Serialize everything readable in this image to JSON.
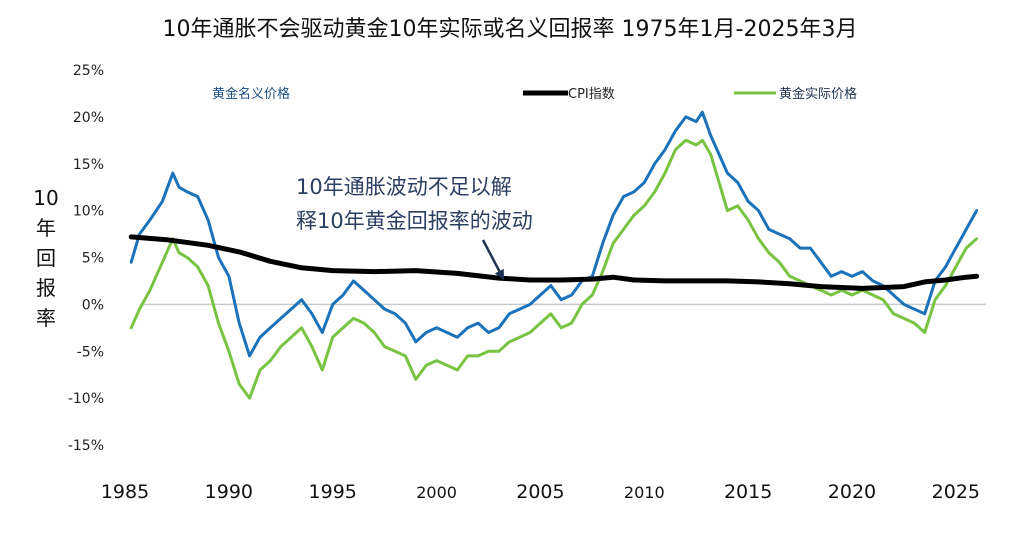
{
  "chart_data": {
    "type": "line",
    "title": "10年通胀不会驱动黄金10年实际或名义回报率 1975年1月-2025年3月",
    "ylabel_chars": [
      "10",
      "年",
      "回",
      "报",
      "率"
    ],
    "ylim": [
      -15,
      25
    ],
    "xlim": [
      1985,
      2026.5
    ],
    "yticks": [
      {
        "value": 25,
        "label": "25%"
      },
      {
        "value": 20,
        "label": "20%"
      },
      {
        "value": 15,
        "label": "15%"
      },
      {
        "value": 10,
        "label": "10%"
      },
      {
        "value": 5,
        "label": "5%"
      },
      {
        "value": 0,
        "label": "0%"
      },
      {
        "value": -5,
        "label": "-5%"
      },
      {
        "value": -10,
        "label": "-10%"
      },
      {
        "value": -15,
        "label": "-15%"
      }
    ],
    "xticks": [
      {
        "value": 1985,
        "label": "1985"
      },
      {
        "value": 1990,
        "label": "1990"
      },
      {
        "value": 1995,
        "label": "1995"
      },
      {
        "value": 2000,
        "label": "2000"
      },
      {
        "value": 2005,
        "label": "2005"
      },
      {
        "value": 2010,
        "label": "2010"
      },
      {
        "value": 2015,
        "label": "2015"
      },
      {
        "value": 2020,
        "label": "2020"
      },
      {
        "value": 2025,
        "label": "2025"
      }
    ],
    "annotation": {
      "lines": [
        "10年通胀波动不足以解",
        "释10年黄金回报率的波动"
      ],
      "arrow_target": {
        "x": 2003.2,
        "y": 2.8
      }
    },
    "series": [
      {
        "name": "黄金名义价格",
        "color": "#1a72bb",
        "x": [
          1985.3,
          1985.7,
          1986.2,
          1986.8,
          1987.3,
          1987.6,
          1988.0,
          1988.5,
          1989.0,
          1989.5,
          1990.0,
          1990.5,
          1991.0,
          1991.5,
          1992.0,
          1992.5,
          1993.0,
          1993.5,
          1994.0,
          1994.5,
          1995.0,
          1995.5,
          1996.0,
          1996.5,
          1997.0,
          1997.5,
          1998.0,
          1998.5,
          1999.0,
          1999.5,
          2000.0,
          2000.5,
          2001.0,
          2001.5,
          2002.0,
          2002.5,
          2003.0,
          2003.5,
          2004.0,
          2004.5,
          2005.0,
          2005.5,
          2006.0,
          2006.5,
          2007.0,
          2007.5,
          2008.0,
          2008.5,
          2009.0,
          2009.5,
          2010.0,
          2010.5,
          2011.0,
          2011.5,
          2012.0,
          2012.5,
          2012.8,
          2013.2,
          2013.6,
          2014.0,
          2014.5,
          2015.0,
          2015.5,
          2016.0,
          2016.5,
          2017.0,
          2017.5,
          2018.0,
          2018.5,
          2019.0,
          2019.5,
          2020.0,
          2020.5,
          2021.0,
          2021.5,
          2022.0,
          2022.5,
          2023.0,
          2023.5,
          2024.0,
          2024.5,
          2025.0,
          2025.5,
          2026.0
        ],
        "values": [
          4.5,
          7.5,
          9.0,
          11.0,
          14.0,
          12.5,
          12.0,
          11.5,
          9.0,
          5.0,
          3.0,
          -2.0,
          -5.5,
          -3.5,
          -2.5,
          -1.5,
          -0.5,
          0.5,
          -1.0,
          -3.0,
          0.0,
          1.0,
          2.5,
          1.5,
          0.5,
          -0.5,
          -1.0,
          -2.0,
          -4.0,
          -3.0,
          -2.5,
          -3.0,
          -3.5,
          -2.5,
          -2.0,
          -3.0,
          -2.5,
          -1.0,
          -0.5,
          0.0,
          1.0,
          2.0,
          0.5,
          1.0,
          2.5,
          3.0,
          6.5,
          9.5,
          11.5,
          12.0,
          13.0,
          15.0,
          16.5,
          18.5,
          20.0,
          19.5,
          20.5,
          18.0,
          16.0,
          14.0,
          13.0,
          11.0,
          10.0,
          8.0,
          7.5,
          7.0,
          6.0,
          6.0,
          4.5,
          3.0,
          3.5,
          3.0,
          3.5,
          2.5,
          2.0,
          1.0,
          0.0,
          -0.5,
          -1.0,
          2.5,
          4.0,
          6.0,
          8.0,
          10.0
        ]
      },
      {
        "name": "黄金实际价格",
        "color": "#78c442",
        "x": [
          1985.3,
          1985.7,
          1986.2,
          1986.8,
          1987.3,
          1987.6,
          1988.0,
          1988.5,
          1989.0,
          1989.5,
          1990.0,
          1990.5,
          1991.0,
          1991.5,
          1992.0,
          1992.5,
          1993.0,
          1993.5,
          1994.0,
          1994.5,
          1995.0,
          1995.5,
          1996.0,
          1996.5,
          1997.0,
          1997.5,
          1998.0,
          1998.5,
          1999.0,
          1999.5,
          2000.0,
          2000.5,
          2001.0,
          2001.5,
          2002.0,
          2002.5,
          2003.0,
          2003.5,
          2004.0,
          2004.5,
          2005.0,
          2005.5,
          2006.0,
          2006.5,
          2007.0,
          2007.5,
          2008.0,
          2008.5,
          2009.0,
          2009.5,
          2010.0,
          2010.5,
          2011.0,
          2011.5,
          2012.0,
          2012.5,
          2012.8,
          2013.2,
          2013.6,
          2014.0,
          2014.5,
          2015.0,
          2015.5,
          2016.0,
          2016.5,
          2017.0,
          2017.5,
          2018.0,
          2018.5,
          2019.0,
          2019.5,
          2020.0,
          2020.5,
          2021.0,
          2021.5,
          2022.0,
          2022.5,
          2023.0,
          2023.5,
          2024.0,
          2024.5,
          2025.0,
          2025.5,
          2026.0
        ],
        "values": [
          -2.5,
          -0.5,
          1.5,
          4.5,
          7.0,
          5.5,
          5.0,
          4.0,
          2.0,
          -2.0,
          -5.0,
          -8.5,
          -10.0,
          -7.0,
          -6.0,
          -4.5,
          -3.5,
          -2.5,
          -4.5,
          -7.0,
          -3.5,
          -2.5,
          -1.5,
          -2.0,
          -3.0,
          -4.5,
          -5.0,
          -5.5,
          -8.0,
          -6.5,
          -6.0,
          -6.5,
          -7.0,
          -5.5,
          -5.5,
          -5.0,
          -5.0,
          -4.0,
          -3.5,
          -3.0,
          -2.0,
          -1.0,
          -2.5,
          -2.0,
          0.0,
          1.0,
          3.5,
          6.5,
          8.0,
          9.5,
          10.5,
          12.0,
          14.0,
          16.5,
          17.5,
          17.0,
          17.5,
          16.0,
          13.0,
          10.0,
          10.5,
          9.0,
          7.0,
          5.5,
          4.5,
          3.0,
          2.5,
          2.0,
          1.5,
          1.0,
          1.5,
          1.0,
          1.5,
          1.0,
          0.5,
          -1.0,
          -1.5,
          -2.0,
          -3.0,
          0.5,
          2.0,
          4.0,
          6.0,
          7.0
        ]
      },
      {
        "name": "CPI指数",
        "color": "#000000",
        "x": [
          1985.3,
          1987.0,
          1989.0,
          1990.5,
          1992.0,
          1993.5,
          1995.0,
          1997.0,
          1999.0,
          2001.0,
          2003.0,
          2004.5,
          2006.0,
          2007.5,
          2008.5,
          2009.5,
          2011.0,
          2012.5,
          2014.0,
          2015.5,
          2017.0,
          2018.5,
          2019.5,
          2020.5,
          2021.5,
          2022.5,
          2023.5,
          2024.5,
          2025.5,
          2026.0
        ],
        "values": [
          7.2,
          6.9,
          6.3,
          5.6,
          4.6,
          3.9,
          3.6,
          3.5,
          3.6,
          3.3,
          2.8,
          2.6,
          2.6,
          2.7,
          2.9,
          2.6,
          2.5,
          2.5,
          2.5,
          2.4,
          2.2,
          1.9,
          1.8,
          1.7,
          1.8,
          1.9,
          2.4,
          2.6,
          2.9,
          3.0
        ]
      }
    ],
    "legend": [
      {
        "name": "黄金名义价格",
        "color": "#1a72bb"
      },
      {
        "name": "CPI指数",
        "color": "#000000"
      },
      {
        "name": "黄金实际价格",
        "color": "#78c442"
      }
    ]
  }
}
